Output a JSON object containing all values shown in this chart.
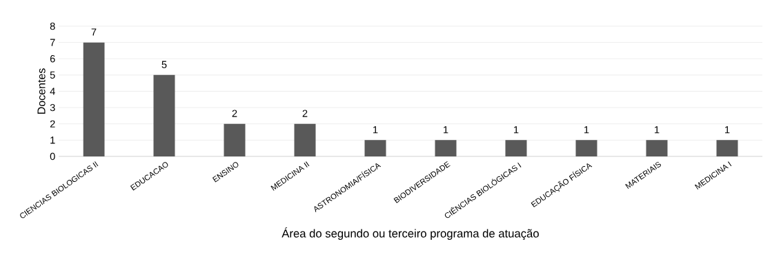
{
  "chart_data": {
    "type": "bar",
    "categories": [
      "CIENCIAS BIOLOGICAS II",
      "EDUCACAO",
      "ENSINO",
      "MEDICINA II",
      "ASTRONOMIA/FÍSICA",
      "BIODIVERSIDADE",
      "CIÊNCIAS BIOLÓGICAS I",
      "EDUCAÇÃO FÍSICA",
      "MATERIAIS",
      "MEDICINA I"
    ],
    "values": [
      7,
      5,
      2,
      2,
      1,
      1,
      1,
      1,
      1,
      1
    ],
    "color": "#595959",
    "xlabel": "Área do segundo ou terceiro programa de atuação",
    "ylabel": "Docentes",
    "ylim": [
      0,
      8
    ],
    "yticks": [
      0,
      1,
      2,
      3,
      4,
      5,
      6,
      7,
      8
    ],
    "grid": "y",
    "data_labels": true
  }
}
